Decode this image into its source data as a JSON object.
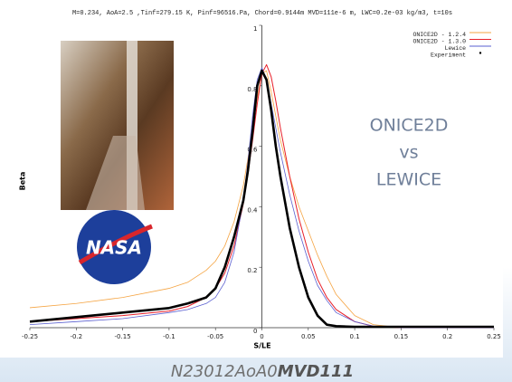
{
  "chart_data": {
    "type": "line",
    "title": "M=0.234, AoA=2.5 ,Tinf=279.15 K, Pinf=96516.Pa, Chord=0.9144m MVD=111e-6 m, LWC=0.2e-03 kg/m3, t=10s",
    "xlabel": "S/LE",
    "ylabel": "Beta",
    "annotation": [
      "ONICE2D",
      "vs",
      "LEWICE"
    ],
    "caption": {
      "text": "N23012AoA0",
      "bold": "MVD111"
    },
    "logo_text": "NASA",
    "xlim": [
      -0.25,
      0.25
    ],
    "ylim": [
      0,
      1
    ],
    "xticks": [
      -0.25,
      -0.2,
      -0.15,
      -0.1,
      -0.05,
      0,
      0.05,
      0.1,
      0.15,
      0.2,
      0.25
    ],
    "yticks": [
      0,
      0.2,
      0.4,
      0.6,
      0.8,
      1
    ],
    "grid": false,
    "legend": "upper right",
    "x": [
      -0.25,
      -0.2,
      -0.15,
      -0.1,
      -0.08,
      -0.06,
      -0.05,
      -0.04,
      -0.03,
      -0.02,
      -0.015,
      -0.01,
      -0.005,
      0,
      0.005,
      0.01,
      0.015,
      0.02,
      0.03,
      0.04,
      0.05,
      0.06,
      0.07,
      0.08,
      0.1,
      0.12,
      0.15,
      0.2,
      0.25
    ],
    "series": [
      {
        "name": "ONICE2D - 1.2.4",
        "color": "#f5a442",
        "width": 0.8,
        "values": [
          0.066,
          0.08,
          0.1,
          0.13,
          0.15,
          0.19,
          0.22,
          0.27,
          0.35,
          0.47,
          0.56,
          0.66,
          0.76,
          0.84,
          0.85,
          0.78,
          0.7,
          0.62,
          0.5,
          0.4,
          0.32,
          0.24,
          0.17,
          0.11,
          0.04,
          0.01,
          0,
          0,
          0
        ]
      },
      {
        "name": "ONICE2D - 1.3.0",
        "color": "#e8202a",
        "width": 1,
        "values": [
          0.02,
          0.03,
          0.04,
          0.055,
          0.07,
          0.1,
          0.13,
          0.18,
          0.27,
          0.41,
          0.51,
          0.62,
          0.74,
          0.84,
          0.87,
          0.83,
          0.75,
          0.66,
          0.5,
          0.36,
          0.25,
          0.16,
          0.1,
          0.06,
          0.02,
          0.005,
          0,
          0,
          0
        ]
      },
      {
        "name": "Lewice",
        "color": "#5a5fd0",
        "width": 0.8,
        "values": [
          0.01,
          0.02,
          0.03,
          0.05,
          0.06,
          0.08,
          0.1,
          0.15,
          0.25,
          0.42,
          0.55,
          0.7,
          0.82,
          0.86,
          0.82,
          0.74,
          0.66,
          0.58,
          0.44,
          0.32,
          0.22,
          0.14,
          0.09,
          0.05,
          0.02,
          0.005,
          0,
          0,
          0
        ]
      },
      {
        "name": "Experiment",
        "color": "#000000",
        "width": 2.6,
        "marker": "dot",
        "values": [
          0.02,
          0.035,
          0.05,
          0.065,
          0.08,
          0.1,
          0.13,
          0.2,
          0.3,
          0.42,
          0.52,
          0.65,
          0.8,
          0.85,
          0.82,
          0.72,
          0.6,
          0.5,
          0.33,
          0.2,
          0.1,
          0.04,
          0.01,
          0.005,
          0.003,
          0.003,
          0.003,
          0.003,
          0.003
        ]
      }
    ]
  }
}
